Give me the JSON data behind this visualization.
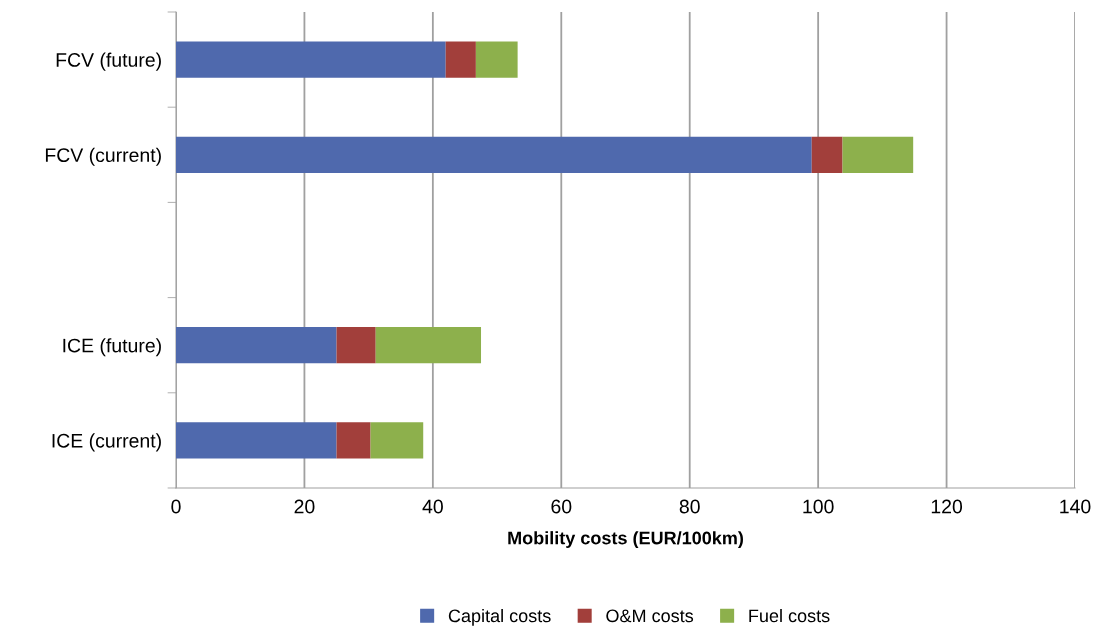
{
  "chart_data": {
    "type": "bar",
    "orientation": "horizontal",
    "stacked": true,
    "categories": [
      "FCV (future)",
      "FCV (current)",
      null,
      "ICE (future)",
      "ICE (current)"
    ],
    "series": [
      {
        "name": "Capital costs",
        "color": "#4f69ad",
        "values": [
          42,
          99,
          null,
          25,
          25
        ]
      },
      {
        "name": "O&M costs",
        "color": "#a23f3b",
        "values": [
          4.7,
          4.8,
          null,
          6.1,
          5.3
        ]
      },
      {
        "name": "Fuel costs",
        "color": "#8db04c",
        "values": [
          6.5,
          11,
          null,
          16.4,
          8.2
        ]
      }
    ],
    "xlabel": "Mobility costs (EUR/100km)",
    "xlim": [
      0,
      140
    ],
    "xticks": [
      0,
      20,
      40,
      60,
      80,
      100,
      120,
      140
    ],
    "grid": "x",
    "legend": "bottom"
  }
}
